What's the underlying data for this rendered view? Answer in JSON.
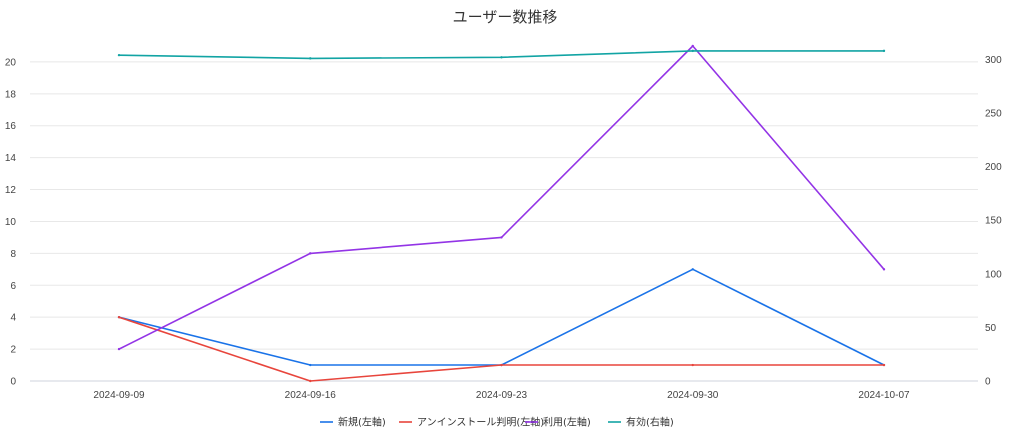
{
  "chart_data": {
    "type": "line",
    "title": "ユーザー数推移",
    "xlabel": "",
    "ylabel": "",
    "categories": [
      "2024-09-09",
      "2024-09-16",
      "2024-09-23",
      "2024-09-30",
      "2024-10-07"
    ],
    "y_left": {
      "range": [
        0,
        21.5
      ],
      "ticks": [
        0,
        2,
        4,
        6,
        8,
        10,
        12,
        14,
        16,
        18,
        20
      ]
    },
    "y_right": {
      "range": [
        0,
        320
      ],
      "ticks": [
        0,
        50,
        100,
        150,
        200,
        250,
        300
      ]
    },
    "grid": true,
    "legend_position": "bottom",
    "series": [
      {
        "name": "新規(左軸)",
        "axis": "left",
        "color": "#1a73e8",
        "values": [
          4,
          1,
          1,
          7,
          1
        ]
      },
      {
        "name": "アンインストール判明(左軸)",
        "axis": "left",
        "color": "#e8453c",
        "values": [
          4,
          0,
          1,
          1,
          1
        ]
      },
      {
        "name": "利用(左軸)",
        "axis": "left",
        "color": "#9334e6",
        "values": [
          2,
          8,
          9,
          21,
          7
        ]
      },
      {
        "name": "有効(右軸)",
        "axis": "right",
        "color": "#12a4a4",
        "values": [
          304,
          301,
          302,
          308,
          308
        ]
      }
    ]
  }
}
